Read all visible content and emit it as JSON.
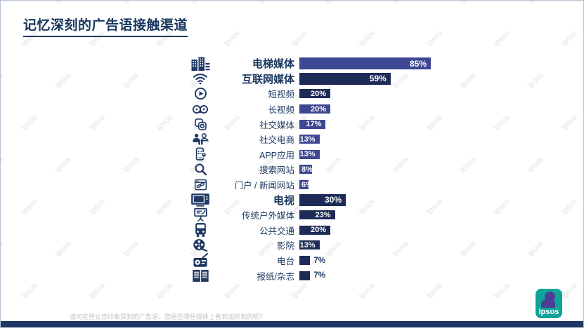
{
  "slide": {
    "title": "记忆深刻的广告语接触渠道",
    "footnote": "请问这些让您印象深刻的广告语，您是在哪些媒体上看到或听到的呢？",
    "watermark_text": "Ipsos",
    "logo_text": "Ipsos"
  },
  "colors": {
    "navy": "#1e2b57",
    "indigo": "#3e4792",
    "label_text": "#17365d",
    "footer_bar": "#1f3864",
    "logo_teal": "#0fa39a",
    "logo_figure": "#4a3f94",
    "watermark": "#d7d7d7"
  },
  "chart_data": {
    "type": "bar",
    "orientation": "horizontal",
    "title": "记忆深刻的广告语接触渠道",
    "unit": "%",
    "xlim": [
      0,
      100
    ],
    "grid": false,
    "legend": false,
    "categories": [
      "电梯媒体",
      "互联网媒体",
      "短视频",
      "长视频",
      "社交媒体",
      "社交电商",
      "APP应用",
      "搜索网站",
      "门户 / 新闻网站",
      "电视",
      "传统户外媒体",
      "公共交通",
      "影院",
      "电台",
      "报纸/杂志"
    ],
    "values": [
      85,
      59,
      20,
      20,
      17,
      13,
      13,
      8,
      6,
      30,
      23,
      20,
      13,
      7,
      7
    ],
    "rows": [
      {
        "label": "电梯媒体",
        "value": 85,
        "value_label": "85%",
        "color": "indigo",
        "bold": true,
        "value_position": "inside",
        "icon": "buildings-icon"
      },
      {
        "label": "互联网媒体",
        "value": 59,
        "value_label": "59%",
        "color": "navy",
        "bold": true,
        "value_position": "inside",
        "icon": "wifi-icon"
      },
      {
        "label": "短视频",
        "value": 20,
        "value_label": "20%",
        "color": "navy",
        "bold": false,
        "value_position": "inside",
        "icon": "play-video-icon"
      },
      {
        "label": "长视频",
        "value": 20,
        "value_label": "20%",
        "color": "indigo",
        "bold": false,
        "value_position": "inside",
        "icon": "film-reels-icon"
      },
      {
        "label": "社交媒体",
        "value": 17,
        "value_label": "17%",
        "color": "indigo",
        "bold": false,
        "value_position": "inside",
        "icon": "social-apps-icon"
      },
      {
        "label": "社交电商",
        "value": 13,
        "value_label": "13%",
        "color": "indigo",
        "bold": false,
        "value_position": "inside",
        "icon": "social-commerce-icon"
      },
      {
        "label": "APP应用",
        "value": 13,
        "value_label": "13%",
        "color": "indigo",
        "bold": false,
        "value_position": "inside",
        "icon": "mobile-app-icon"
      },
      {
        "label": "搜索网站",
        "value": 8,
        "value_label": "8%",
        "color": "indigo",
        "bold": false,
        "value_position": "inside",
        "icon": "search-icon"
      },
      {
        "label": "门户 / 新闻网站",
        "value": 6,
        "value_label": "6%",
        "color": "indigo",
        "bold": false,
        "value_position": "inside",
        "icon": "news-portal-icon"
      },
      {
        "label": "电视",
        "value": 30,
        "value_label": "30%",
        "color": "navy",
        "bold": true,
        "value_position": "inside",
        "icon": "tv-icon"
      },
      {
        "label": "传统户外媒体",
        "value": 23,
        "value_label": "23%",
        "color": "navy",
        "bold": false,
        "value_position": "inside",
        "icon": "billboard-icon"
      },
      {
        "label": "公共交通",
        "value": 20,
        "value_label": "20%",
        "color": "navy",
        "bold": false,
        "value_position": "inside",
        "icon": "bus-icon"
      },
      {
        "label": "影院",
        "value": 13,
        "value_label": "13%",
        "color": "navy",
        "bold": false,
        "value_position": "inside",
        "icon": "cinema-reel-icon"
      },
      {
        "label": "电台",
        "value": 7,
        "value_label": "7%",
        "color": "navy",
        "bold": false,
        "value_position": "outside",
        "icon": "radio-icon"
      },
      {
        "label": "报纸/杂志",
        "value": 7,
        "value_label": "7%",
        "color": "navy",
        "bold": false,
        "value_position": "outside",
        "icon": "newspaper-icon"
      }
    ]
  }
}
